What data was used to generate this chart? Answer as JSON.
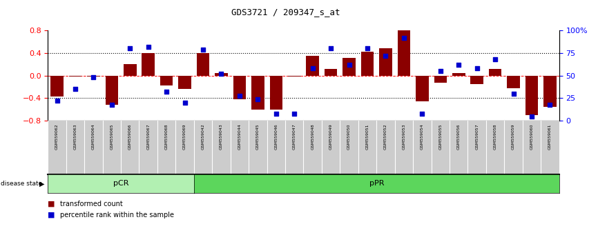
{
  "title": "GDS3721 / 209347_s_at",
  "samples": [
    "GSM559062",
    "GSM559063",
    "GSM559064",
    "GSM559065",
    "GSM559066",
    "GSM559067",
    "GSM559068",
    "GSM559069",
    "GSM559042",
    "GSM559043",
    "GSM559044",
    "GSM559045",
    "GSM559046",
    "GSM559047",
    "GSM559048",
    "GSM559049",
    "GSM559050",
    "GSM559051",
    "GSM559052",
    "GSM559053",
    "GSM559054",
    "GSM559055",
    "GSM559056",
    "GSM559057",
    "GSM559058",
    "GSM559059",
    "GSM559060",
    "GSM559061"
  ],
  "red_bars": [
    -0.37,
    -0.02,
    -0.02,
    -0.52,
    0.2,
    0.4,
    -0.18,
    -0.23,
    0.4,
    0.05,
    -0.42,
    -0.6,
    -0.6,
    -0.01,
    0.35,
    0.12,
    0.32,
    0.42,
    0.48,
    0.8,
    -0.45,
    -0.12,
    0.05,
    -0.15,
    0.12,
    -0.22,
    -0.7,
    -0.55
  ],
  "blue_pct": [
    22,
    35,
    48,
    18,
    80,
    82,
    32,
    20,
    79,
    52,
    28,
    24,
    8,
    8,
    58,
    80,
    62,
    80,
    72,
    92,
    8,
    55,
    62,
    58,
    68,
    30,
    5,
    18
  ],
  "pCR_count": 8,
  "ylim": [
    -0.8,
    0.8
  ],
  "yticks_left": [
    -0.8,
    -0.4,
    0.0,
    0.4,
    0.8
  ],
  "yticks_right": [
    0,
    25,
    50,
    75,
    100
  ],
  "ytick_right_labels": [
    "0",
    "25",
    "50",
    "75",
    "100%"
  ],
  "bar_color": "#8B0000",
  "dot_color": "#0000CD",
  "pCR_fill": "#b2f0b2",
  "pPR_fill": "#5cd65c",
  "xtick_bg": "#cccccc",
  "pCR_label": "pCR",
  "pPR_label": "pPR",
  "legend_red_text": "transformed count",
  "legend_blue_text": "percentile rank within the sample",
  "disease_label": "disease state"
}
